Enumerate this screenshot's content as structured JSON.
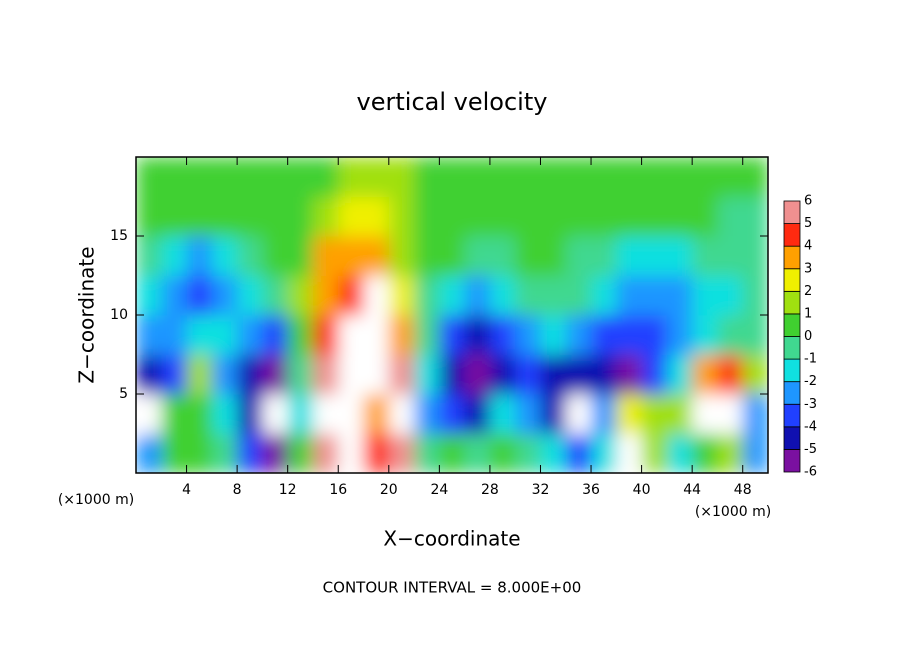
{
  "chart_data": {
    "type": "heatmap",
    "title": "vertical velocity",
    "xlabel": "X−coordinate",
    "ylabel": "Z−coordinate",
    "unit_label": "(×1000 m)",
    "footer": "CONTOUR INTERVAL = 8.000E+00",
    "xlim": [
      0,
      50
    ],
    "ylim": [
      0,
      20
    ],
    "xticks": [
      4,
      8,
      12,
      16,
      20,
      24,
      28,
      32,
      36,
      40,
      44,
      48
    ],
    "yticks": [
      5,
      10,
      15
    ],
    "x": [
      1,
      3,
      5,
      7,
      9,
      11,
      13,
      15,
      17,
      19,
      21,
      23,
      25,
      27,
      29,
      31,
      33,
      35,
      37,
      39,
      41,
      43,
      45,
      47,
      49
    ],
    "y": [
      1.25,
      3.75,
      6.25,
      8.75,
      11.25,
      13.75,
      16.25,
      18.75
    ],
    "z": [
      [
        -2,
        0.5,
        0.5,
        0,
        -3,
        -5,
        0.5,
        5.5,
        7,
        5,
        5.5,
        -0.5,
        0.5,
        0,
        0.5,
        -0.5,
        -1,
        -3,
        -1,
        7,
        2,
        -1,
        1,
        2,
        -2
      ],
      [
        8,
        1,
        0.5,
        -1,
        -4,
        -8,
        -1,
        7,
        8,
        4,
        7,
        -2,
        -3,
        -4,
        -1,
        -2,
        -4,
        -8,
        -2,
        3,
        2,
        2,
        7,
        8,
        -2
      ],
      [
        -4,
        -3,
        2,
        -2,
        -4,
        -5,
        0,
        6,
        8,
        8,
        6,
        -1,
        -4,
        -6,
        -4,
        -3,
        -4,
        -4,
        -4,
        -5,
        -3,
        -1,
        4,
        5,
        2
      ],
      [
        -2,
        -2,
        -1,
        -1,
        -2,
        -3,
        1,
        5,
        8,
        8,
        4,
        0,
        -3,
        -4,
        -3,
        -2,
        -1,
        -2,
        -3,
        -3,
        -3,
        -2,
        -1,
        0,
        0
      ],
      [
        -1,
        -2,
        -3,
        -2,
        -1,
        0,
        2,
        4,
        5,
        8,
        3,
        0,
        -1,
        -2,
        -1,
        0,
        0,
        0,
        -1,
        -2,
        -2,
        -2,
        -1,
        -1,
        0
      ],
      [
        0,
        -1,
        -2,
        -1,
        0,
        0.5,
        1,
        3.5,
        4,
        4,
        2,
        0.5,
        0.5,
        0,
        0,
        0.5,
        0.5,
        0,
        -0.5,
        -1,
        -1,
        -1,
        -0.5,
        -0.5,
        0
      ],
      [
        0.5,
        0.5,
        0.5,
        0.5,
        0.5,
        0.5,
        1,
        1.5,
        2.5,
        3,
        2,
        1,
        0.5,
        0.5,
        0.5,
        0.5,
        0.5,
        0.5,
        0.5,
        0.5,
        0.5,
        0.5,
        0.5,
        -0.5,
        0
      ],
      [
        0.5,
        0.5,
        0.5,
        0.5,
        0.5,
        0.5,
        0.5,
        1,
        1.5,
        2,
        1.5,
        0.5,
        0.5,
        0.5,
        0.5,
        0.5,
        0.5,
        0.5,
        0.5,
        0.5,
        0.5,
        0.5,
        0.5,
        0.5,
        0.5
      ]
    ],
    "levels": [
      -6,
      -5,
      -4,
      -3,
      -2,
      -1,
      0,
      1,
      2,
      3,
      4,
      5,
      6
    ],
    "colors": [
      "#7a10a0",
      "#1010b0",
      "#2040ff",
      "#1e96ff",
      "#10e0e0",
      "#40d890",
      "#40d030",
      "#a0e010",
      "#f0f000",
      "#ffa000",
      "#ff2a10",
      "#f09090"
    ],
    "out_of_range_color": "#ffffff"
  }
}
